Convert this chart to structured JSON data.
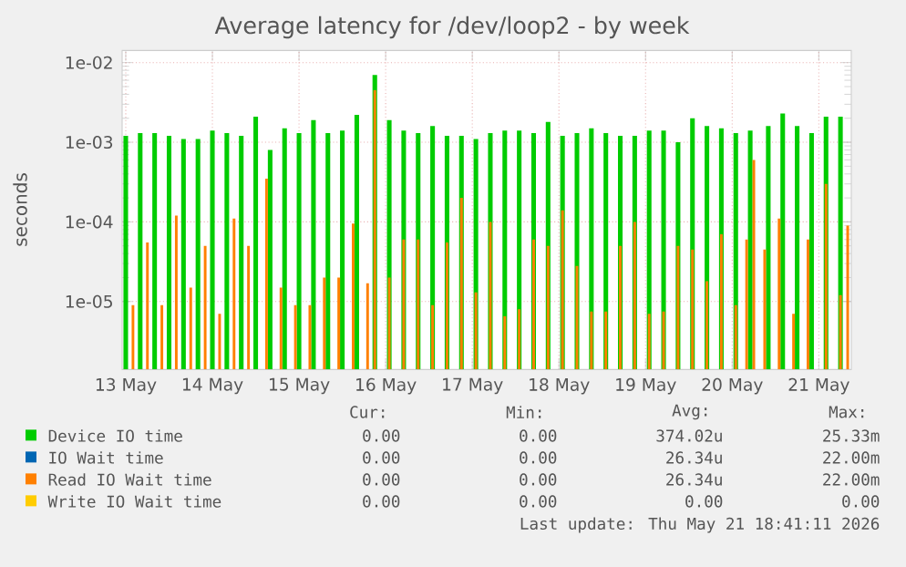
{
  "chart_data": {
    "type": "bar",
    "title": "Average latency for /dev/loop2 - by week",
    "ylabel": "seconds",
    "log": true,
    "grid": true,
    "legend": "bottom",
    "xlim": [
      "2026-05-13T11:00",
      "2026-05-21T21:00"
    ],
    "ylim": [
      1.4e-06,
      0.0142
    ],
    "xticks": [
      {
        "value": "2026-05-13T12:00",
        "label": "13 May"
      },
      {
        "value": "2026-05-14T12:00",
        "label": "14 May"
      },
      {
        "value": "2026-05-15T12:00",
        "label": "15 May"
      },
      {
        "value": "2026-05-16T12:00",
        "label": "16 May"
      },
      {
        "value": "2026-05-17T12:00",
        "label": "17 May"
      },
      {
        "value": "2026-05-18T12:00",
        "label": "18 May"
      },
      {
        "value": "2026-05-19T12:00",
        "label": "19 May"
      },
      {
        "value": "2026-05-20T12:00",
        "label": "20 May"
      },
      {
        "value": "2026-05-21T12:00",
        "label": "21 May"
      }
    ],
    "yticks": [
      {
        "value": 1e-05,
        "label": "1e-05"
      },
      {
        "value": 0.0001,
        "label": "1e-04"
      },
      {
        "value": 0.001,
        "label": "1e-03"
      },
      {
        "value": 0.01,
        "label": "1e-02"
      }
    ],
    "series": [
      {
        "name": "Device IO time",
        "color": "#00cc00",
        "x": [
          "2026-05-13T12:00",
          "2026-05-13T16:00",
          "2026-05-13T20:00",
          "2026-05-14T00:00",
          "2026-05-14T04:00",
          "2026-05-14T08:00",
          "2026-05-14T12:00",
          "2026-05-14T16:00",
          "2026-05-14T20:00",
          "2026-05-15T00:00",
          "2026-05-15T04:00",
          "2026-05-15T08:00",
          "2026-05-15T12:00",
          "2026-05-15T16:00",
          "2026-05-15T20:00",
          "2026-05-16T00:00",
          "2026-05-16T04:00",
          "2026-05-16T09:00",
          "2026-05-16T13:00",
          "2026-05-16T17:00",
          "2026-05-16T21:00",
          "2026-05-17T01:00",
          "2026-05-17T05:00",
          "2026-05-17T09:00",
          "2026-05-17T13:00",
          "2026-05-17T17:00",
          "2026-05-17T21:00",
          "2026-05-18T01:00",
          "2026-05-18T05:00",
          "2026-05-18T09:00",
          "2026-05-18T13:00",
          "2026-05-18T17:00",
          "2026-05-18T21:00",
          "2026-05-19T01:00",
          "2026-05-19T05:00",
          "2026-05-19T09:00",
          "2026-05-19T13:00",
          "2026-05-19T17:00",
          "2026-05-19T21:00",
          "2026-05-20T01:00",
          "2026-05-20T05:00",
          "2026-05-20T09:00",
          "2026-05-20T13:00",
          "2026-05-20T17:00",
          "2026-05-20T22:00",
          "2026-05-21T02:00",
          "2026-05-21T06:00",
          "2026-05-21T10:00",
          "2026-05-21T14:00",
          "2026-05-21T18:00"
        ],
        "values": [
          0.0012,
          0.0013,
          0.0013,
          0.0012,
          0.0011,
          0.0011,
          0.0014,
          0.0013,
          0.0012,
          0.0021,
          0.0008,
          0.0015,
          0.0013,
          0.0019,
          0.0013,
          0.0014,
          0.0022,
          0.007,
          0.0019,
          0.0014,
          0.0013,
          0.0016,
          0.0012,
          0.0012,
          0.0011,
          0.0013,
          0.0014,
          0.0014,
          0.0013,
          0.0018,
          0.0012,
          0.0013,
          0.0015,
          0.0013,
          0.0012,
          0.0012,
          0.0014,
          0.0014,
          0.001,
          0.002,
          0.0016,
          0.0015,
          0.0013,
          0.0014,
          0.0016,
          0.0023,
          0.0016,
          0.0013,
          0.0021,
          0.0021
        ]
      },
      {
        "name": "IO Wait time",
        "color": "#0066b3"
      },
      {
        "name": "Read IO Wait time",
        "color": "#ff8000",
        "x": [
          "2026-05-13T14:00",
          "2026-05-13T18:00",
          "2026-05-13T22:00",
          "2026-05-14T02:00",
          "2026-05-14T06:00",
          "2026-05-14T10:00",
          "2026-05-14T14:00",
          "2026-05-14T18:00",
          "2026-05-14T22:00",
          "2026-05-15T03:00",
          "2026-05-15T07:00",
          "2026-05-15T11:00",
          "2026-05-15T15:00",
          "2026-05-15T19:00",
          "2026-05-15T23:00",
          "2026-05-16T03:00",
          "2026-05-16T07:00",
          "2026-05-16T09:00",
          "2026-05-16T13:00",
          "2026-05-16T17:00",
          "2026-05-16T21:00",
          "2026-05-17T01:00",
          "2026-05-17T05:00",
          "2026-05-17T09:00",
          "2026-05-17T13:00",
          "2026-05-17T17:00",
          "2026-05-17T21:00",
          "2026-05-18T01:00",
          "2026-05-18T05:00",
          "2026-05-18T09:00",
          "2026-05-18T13:00",
          "2026-05-18T17:00",
          "2026-05-18T21:00",
          "2026-05-19T01:00",
          "2026-05-19T05:00",
          "2026-05-19T09:00",
          "2026-05-19T13:00",
          "2026-05-19T17:00",
          "2026-05-19T21:00",
          "2026-05-20T01:00",
          "2026-05-20T05:00",
          "2026-05-20T09:00",
          "2026-05-20T13:00",
          "2026-05-20T16:00",
          "2026-05-20T18:00",
          "2026-05-20T21:00",
          "2026-05-21T01:00",
          "2026-05-21T05:00",
          "2026-05-21T09:00",
          "2026-05-21T14:00",
          "2026-05-21T18:00",
          "2026-05-21T20:00"
        ],
        "values": [
          9e-06,
          5.5e-05,
          9e-06,
          0.00012,
          1.5e-05,
          5e-05,
          7e-06,
          0.00011,
          5e-05,
          0.00035,
          1.5e-05,
          9e-06,
          9e-06,
          2e-05,
          2e-05,
          9.5e-05,
          1.7e-05,
          0.0045,
          2e-05,
          6e-05,
          6e-05,
          9e-06,
          5.5e-05,
          0.0002,
          1.3e-05,
          0.0001,
          6.5e-06,
          8e-06,
          6e-05,
          5e-05,
          0.00014,
          2.8e-05,
          7.5e-06,
          7.5e-06,
          5e-05,
          0.0001,
          7e-06,
          7.5e-06,
          5e-05,
          4.5e-05,
          1.8e-05,
          7e-05,
          9e-06,
          6e-05,
          0.0006,
          4.5e-05,
          0.00011,
          7e-06,
          6e-05,
          0.0003,
          1.2e-05,
          9e-05
        ]
      },
      {
        "name": "Write IO Wait time",
        "color": "#ffcc00"
      }
    ],
    "annotations": [
      "Cur:",
      "Min:",
      "Avg:",
      "Max:",
      "0.00",
      "0.00",
      "374.02u",
      "25.33m",
      "0.00",
      "0.00",
      "26.34u",
      "22.00m",
      "0.00",
      "0.00",
      "26.34u",
      "22.00m",
      "0.00",
      "0.00",
      "0.00",
      "0.00",
      "Last update: Thu May 21 18:41:11 2026"
    ]
  }
}
